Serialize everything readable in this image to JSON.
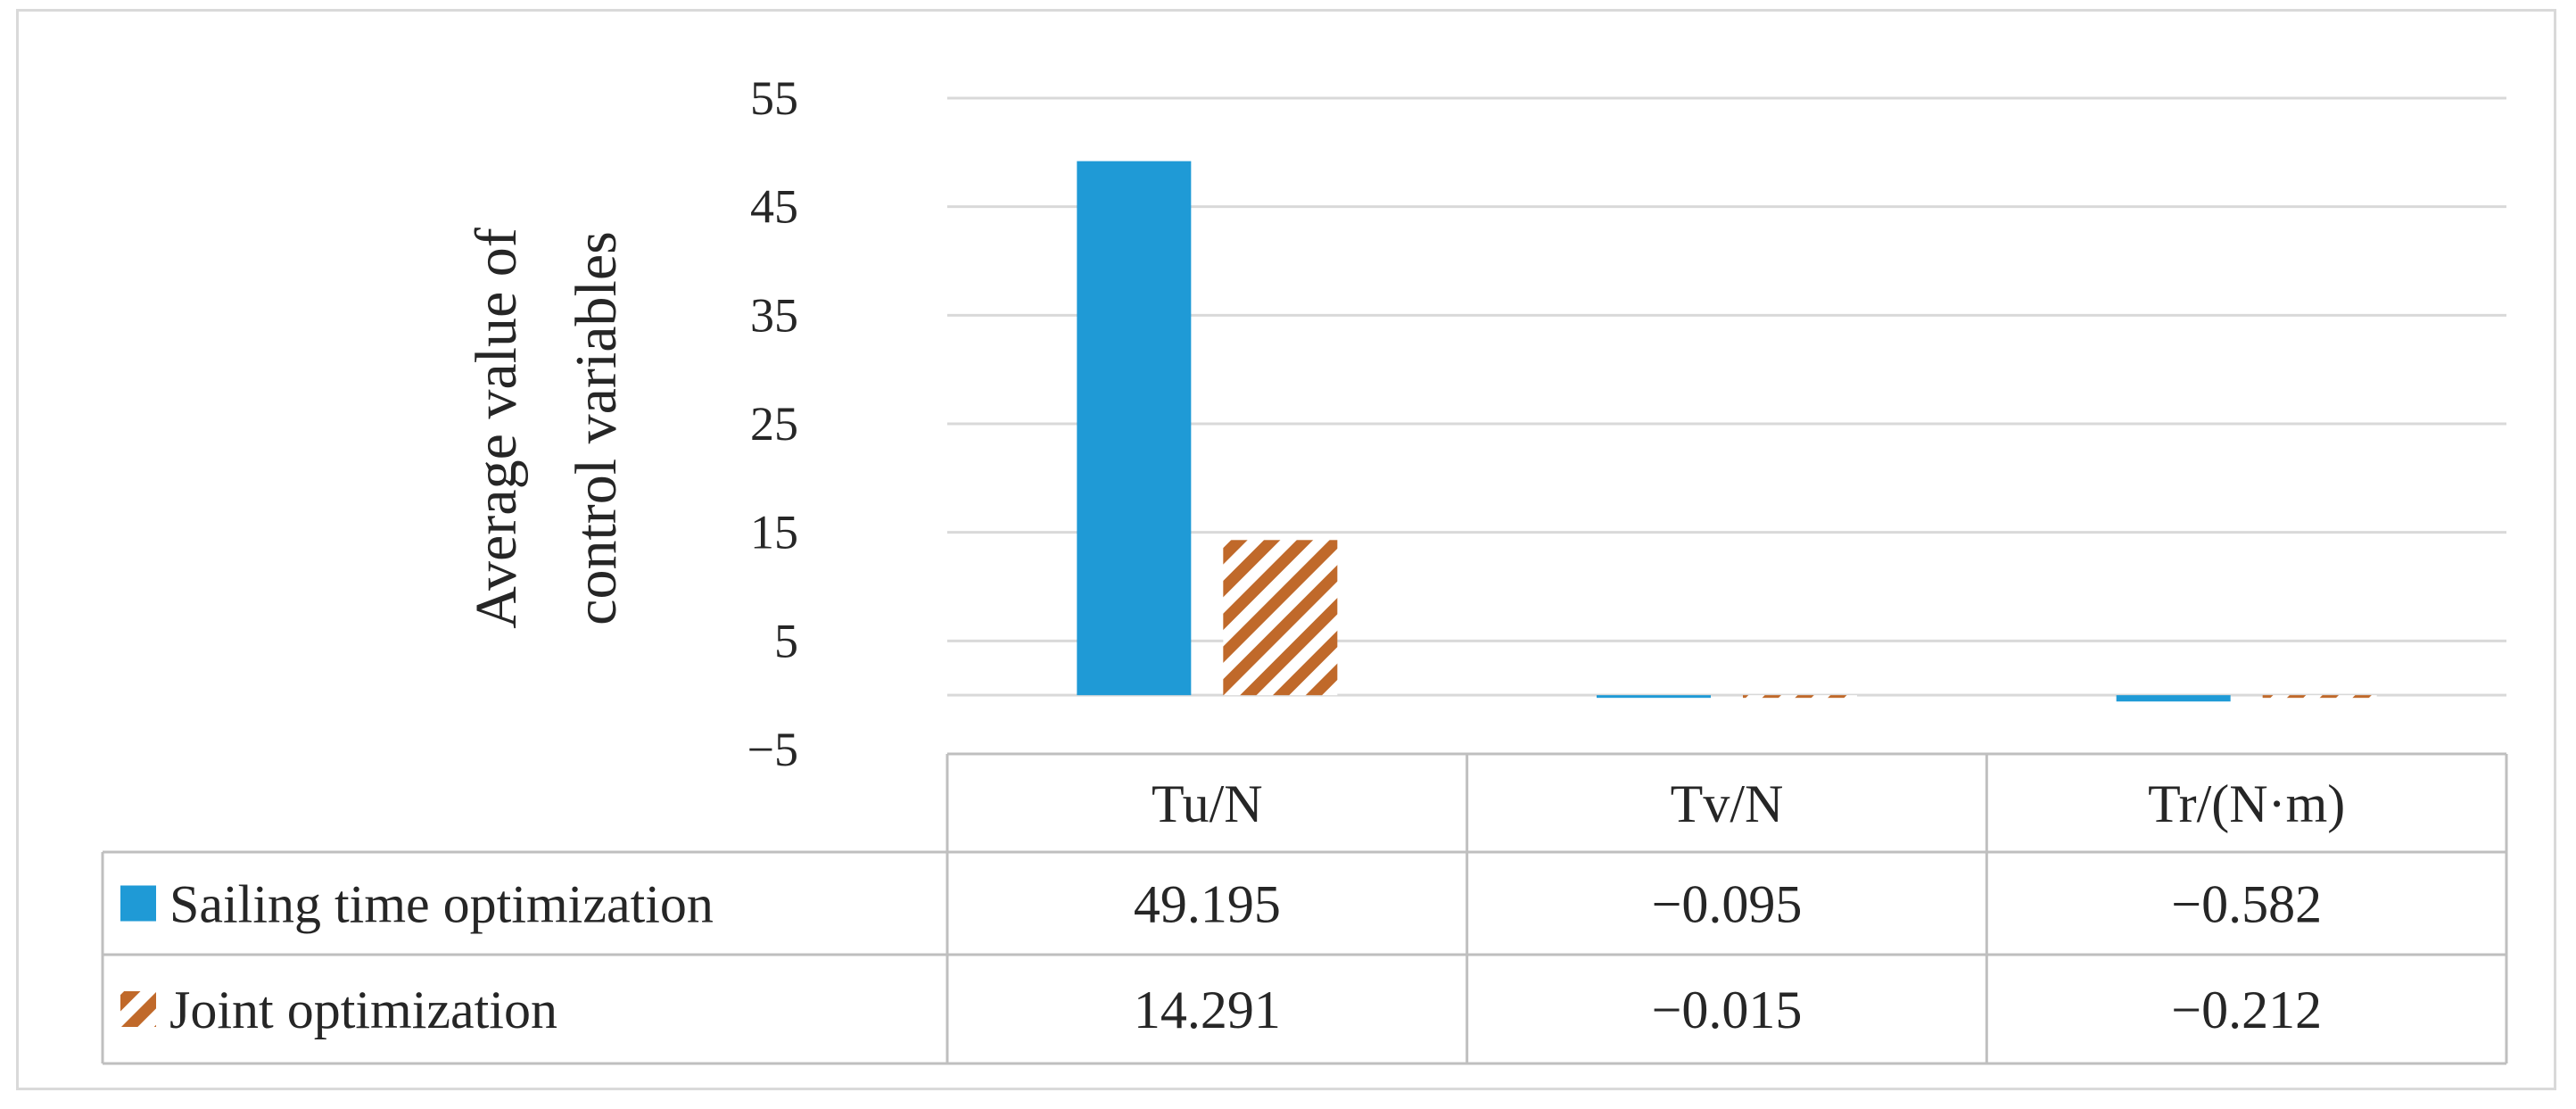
{
  "chart_data": {
    "type": "bar",
    "ylabel_line1": "Average value of",
    "ylabel_line2": "control variables",
    "categories": [
      "Tu/N",
      "Tv/N",
      "Tr/(N·m)"
    ],
    "series": [
      {
        "name": "Sailing time optimization",
        "values": [
          49.195,
          -0.095,
          -0.582
        ],
        "labels": [
          "49.195",
          "−0.095",
          "−0.582"
        ],
        "color": "#1f9ad6",
        "pattern": "solid"
      },
      {
        "name": "Joint optimization",
        "values": [
          14.291,
          -0.015,
          -0.212
        ],
        "labels": [
          "14.291",
          "−0.015",
          "−0.212"
        ],
        "color": "#c0692a",
        "pattern": "hatch"
      }
    ],
    "yticks": [
      55,
      45,
      35,
      25,
      15,
      5,
      -5
    ],
    "ytick_labels": [
      "55",
      "45",
      "35",
      "25",
      "15",
      "5",
      "−5"
    ],
    "ylim": [
      -5,
      55
    ],
    "grid": true,
    "legend": "data-table"
  }
}
